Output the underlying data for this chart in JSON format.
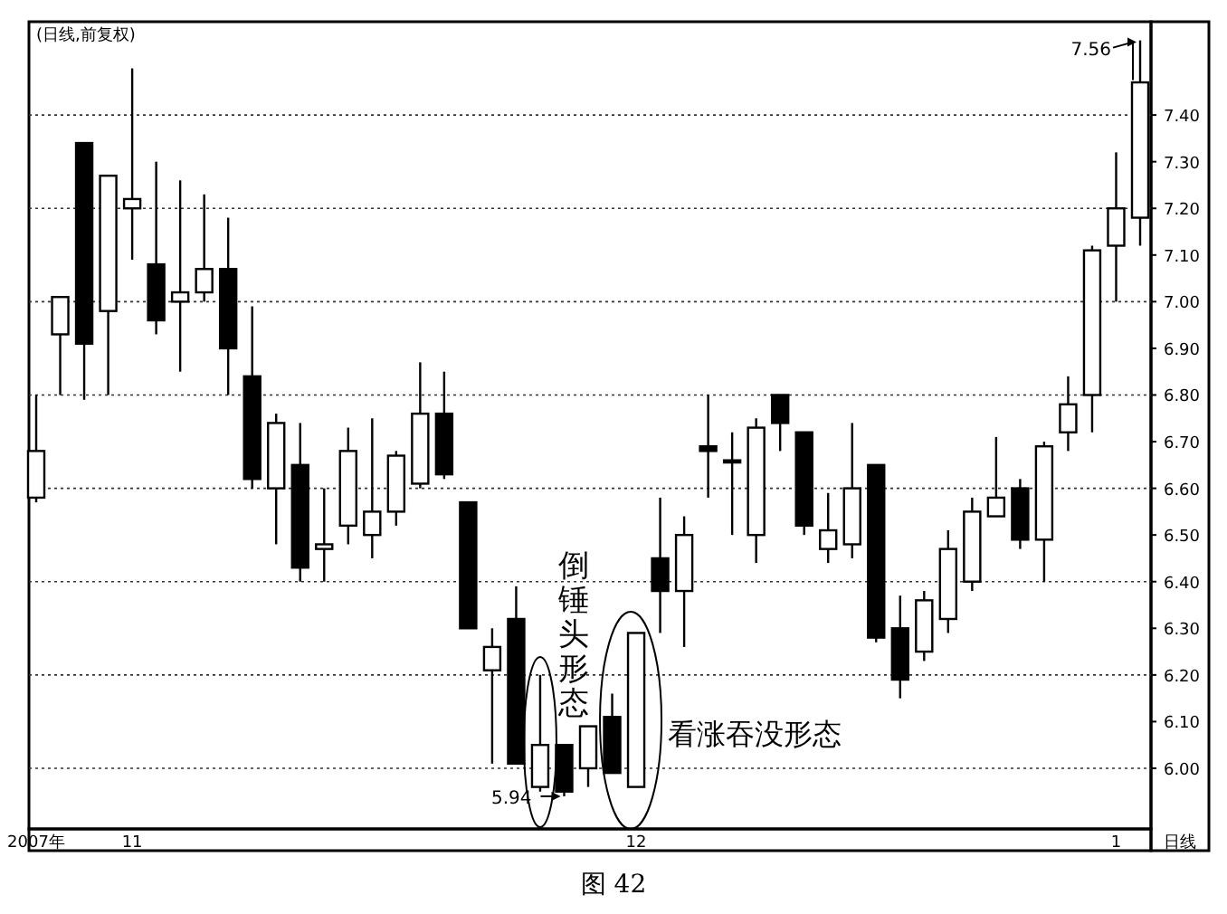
{
  "chart_data": {
    "type": "candlestick",
    "title": "(日线,前复权)",
    "categories": [
      "2007年",
      null,
      null,
      null,
      "11",
      null,
      null,
      null,
      null,
      null,
      null,
      null,
      null,
      null,
      null,
      null,
      null,
      null,
      null,
      null,
      null,
      null,
      null,
      null,
      null,
      "12",
      null,
      null,
      null,
      null,
      null,
      null,
      null,
      null,
      null,
      null,
      null,
      null,
      null,
      null,
      null,
      null,
      null,
      null,
      null,
      "1",
      null
    ],
    "ohlc": [
      [
        6.58,
        6.8,
        6.57,
        6.68
      ],
      [
        6.93,
        7.01,
        6.8,
        7.01
      ],
      [
        7.34,
        7.34,
        6.79,
        6.91
      ],
      [
        6.98,
        7.27,
        6.8,
        7.27
      ],
      [
        7.2,
        7.5,
        7.09,
        7.22
      ],
      [
        7.08,
        7.3,
        6.93,
        6.96
      ],
      [
        7.0,
        7.26,
        6.85,
        7.02
      ],
      [
        7.02,
        7.23,
        7.0,
        7.07
      ],
      [
        7.07,
        7.18,
        6.8,
        6.9
      ],
      [
        6.84,
        6.99,
        6.6,
        6.62
      ],
      [
        6.6,
        6.76,
        6.48,
        6.74
      ],
      [
        6.65,
        6.74,
        6.4,
        6.43
      ],
      [
        6.47,
        6.6,
        6.4,
        6.48
      ],
      [
        6.52,
        6.73,
        6.48,
        6.68
      ],
      [
        6.5,
        6.75,
        6.45,
        6.55
      ],
      [
        6.55,
        6.68,
        6.52,
        6.67
      ],
      [
        6.61,
        6.87,
        6.6,
        6.76
      ],
      [
        6.76,
        6.85,
        6.62,
        6.63
      ],
      [
        6.57,
        6.57,
        6.3,
        6.3
      ],
      [
        6.21,
        6.3,
        6.01,
        6.26
      ],
      [
        6.32,
        6.39,
        6.01,
        6.01
      ],
      [
        5.96,
        6.2,
        5.95,
        6.05
      ],
      [
        6.05,
        6.05,
        5.94,
        5.95
      ],
      [
        6.0,
        6.09,
        5.96,
        6.09
      ],
      [
        6.11,
        6.16,
        5.99,
        5.99
      ],
      [
        5.96,
        6.29,
        5.96,
        6.29
      ],
      [
        6.45,
        6.58,
        6.29,
        6.38
      ],
      [
        6.38,
        6.54,
        6.26,
        6.5
      ],
      [
        6.69,
        6.8,
        6.58,
        6.68
      ],
      [
        6.66,
        6.72,
        6.5,
        6.66
      ],
      [
        6.5,
        6.75,
        6.44,
        6.73
      ],
      [
        6.8,
        6.8,
        6.68,
        6.74
      ],
      [
        6.72,
        6.72,
        6.5,
        6.52
      ],
      [
        6.47,
        6.59,
        6.44,
        6.51
      ],
      [
        6.48,
        6.74,
        6.45,
        6.6
      ],
      [
        6.65,
        6.65,
        6.27,
        6.28
      ],
      [
        6.3,
        6.37,
        6.15,
        6.19
      ],
      [
        6.25,
        6.38,
        6.23,
        6.36
      ],
      [
        6.32,
        6.51,
        6.29,
        6.47
      ],
      [
        6.4,
        6.58,
        6.38,
        6.55
      ],
      [
        6.54,
        6.71,
        6.54,
        6.58
      ],
      [
        6.6,
        6.62,
        6.47,
        6.49
      ],
      [
        6.49,
        6.7,
        6.4,
        6.69
      ],
      [
        6.72,
        6.84,
        6.68,
        6.78
      ],
      [
        6.8,
        7.12,
        6.72,
        7.11
      ],
      [
        7.12,
        7.32,
        7.0,
        7.2
      ],
      [
        7.18,
        7.56,
        7.12,
        7.47
      ]
    ],
    "ylim": [
      5.87,
      7.6
    ],
    "yticks": [
      {
        "value": 6.0,
        "label": "6.00"
      },
      {
        "value": 6.1,
        "label": "6.10"
      },
      {
        "value": 6.2,
        "label": "6.20"
      },
      {
        "value": 6.3,
        "label": "6.30"
      },
      {
        "value": 6.4,
        "label": "6.40"
      },
      {
        "value": 6.5,
        "label": "6.50"
      },
      {
        "value": 6.6,
        "label": "6.60"
      },
      {
        "value": 6.7,
        "label": "6.70"
      },
      {
        "value": 6.8,
        "label": "6.80"
      },
      {
        "value": 6.9,
        "label": "6.90"
      },
      {
        "value": 7.0,
        "label": "7.00"
      },
      {
        "value": 7.1,
        "label": "7.10"
      },
      {
        "value": 7.2,
        "label": "7.20"
      },
      {
        "value": 7.3,
        "label": "7.30"
      },
      {
        "value": 7.4,
        "label": "7.40"
      }
    ],
    "grid": "y",
    "annotations": [
      "倒锤头形态",
      "看涨吞没形态",
      "5.94",
      "7.56",
      "日线",
      "图 42"
    ]
  }
}
